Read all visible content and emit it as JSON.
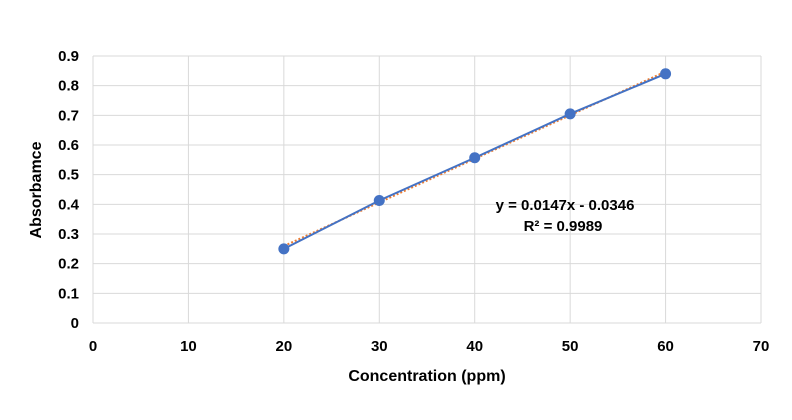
{
  "chart_data": {
    "type": "scatter",
    "xlabel": "Concentration (ppm)",
    "ylabel": "Absorbamce",
    "xlim": [
      0,
      70
    ],
    "ylim": [
      0,
      0.9
    ],
    "xticks": [
      "0",
      "10",
      "20",
      "30",
      "40",
      "50",
      "60",
      "70"
    ],
    "yticks": [
      "0",
      "0.1",
      "0.2",
      "0.3",
      "0.4",
      "0.5",
      "0.6",
      "0.7",
      "0.8",
      "0.9"
    ],
    "grid": true,
    "series": [
      {
        "x": [
          20,
          30,
          40,
          50,
          60
        ],
        "y": [
          0.25,
          0.413,
          0.557,
          0.705,
          0.84
        ],
        "color": "#4472C4"
      }
    ],
    "trendline": {
      "slope": 0.0147,
      "intercept": -0.0346,
      "x_range": [
        20,
        60
      ],
      "color": "#ED7D31",
      "style": "dotted"
    },
    "annotations": {
      "equation": "y = 0.0147x - 0.0346",
      "r_squared": "R² = 0.9989"
    }
  }
}
